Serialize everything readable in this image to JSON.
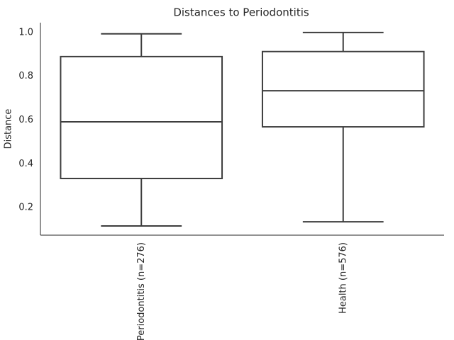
{
  "chart_data": {
    "type": "box",
    "title": "Distances to Periodontitis",
    "y_label": "Distance",
    "categories": [
      "Periodontitis (n=276)",
      "Health (n=576)"
    ],
    "boxes": [
      {
        "whisker_low": 0.116,
        "q1": 0.333,
        "median": 0.592,
        "q3": 0.89,
        "whisker_high": 0.994
      },
      {
        "whisker_low": 0.135,
        "q1": 0.569,
        "median": 0.734,
        "q3": 0.913,
        "whisker_high": 1.0
      }
    ],
    "color": "#3d3d3d",
    "fill": "#ffffff",
    "ylim": [
      0.074,
      1.045
    ],
    "yticks": [
      0.2,
      0.4,
      0.6,
      0.8,
      {
        "value": 1.0,
        "label": "1.0"
      }
    ],
    "grid": false
  }
}
